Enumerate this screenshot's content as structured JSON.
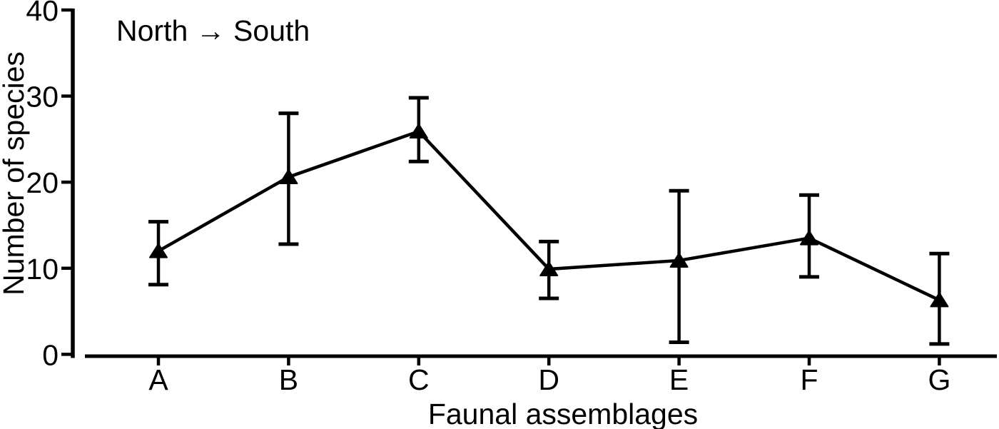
{
  "chart_data": {
    "type": "line",
    "annotation": "North → South",
    "xlabel": "Faunal assemblages",
    "ylabel": "Number of species",
    "categories": [
      "A",
      "B",
      "C",
      "D",
      "E",
      "F",
      "G"
    ],
    "series": [
      {
        "name": "Number of species",
        "marker": "triangle-up",
        "color": "#000000",
        "values": [
          12.0,
          20.6,
          25.9,
          9.9,
          10.9,
          13.5,
          6.3
        ],
        "error_upper": [
          15.4,
          28.0,
          29.8,
          13.1,
          19.0,
          18.5,
          11.7
        ],
        "error_lower": [
          8.1,
          12.8,
          22.4,
          6.5,
          1.4,
          9.0,
          1.2
        ]
      }
    ],
    "ylim": [
      0,
      40
    ],
    "yticks": [
      0,
      10,
      20,
      30,
      40
    ],
    "grid": false,
    "legend": "none",
    "background_color": "#ffffff",
    "axis_color": "#000000"
  }
}
